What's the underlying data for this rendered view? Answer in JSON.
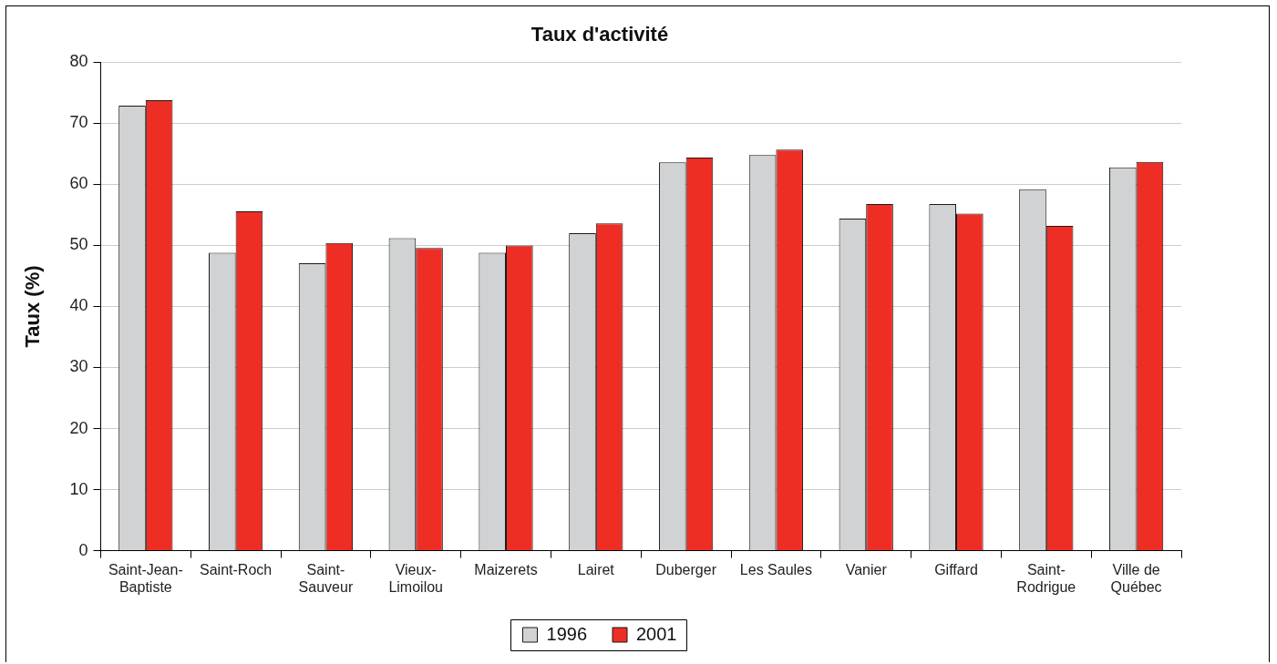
{
  "chart_data": {
    "type": "bar",
    "title": "Taux d'activité",
    "ylabel": "Taux (%)",
    "categories": [
      "Saint-Jean-Baptiste",
      "Saint-Roch",
      "Saint-Sauveur",
      "Vieux-Limoilou",
      "Maizerets",
      "Lairet",
      "Duberger",
      "Les Saules",
      "Vanier",
      "Giffard",
      "Saint-Rodrigue",
      "Ville de Québec"
    ],
    "series": [
      {
        "name": "1996",
        "color": "#d1d2d4",
        "values": [
          72.9,
          48.8,
          47.1,
          51.2,
          48.8,
          52.0,
          63.6,
          64.8,
          54.4,
          56.8,
          59.2,
          62.8
        ]
      },
      {
        "name": "2001",
        "color": "#ee2e24",
        "values": [
          73.8,
          55.6,
          50.4,
          49.6,
          50.0,
          53.6,
          64.4,
          65.7,
          56.8,
          55.2,
          53.2,
          63.7
        ]
      }
    ],
    "ylim": [
      0,
      80
    ],
    "yticks": [
      0,
      10,
      20,
      30,
      40,
      50,
      60,
      70,
      80
    ],
    "grid": "y",
    "legend": "bottom"
  }
}
